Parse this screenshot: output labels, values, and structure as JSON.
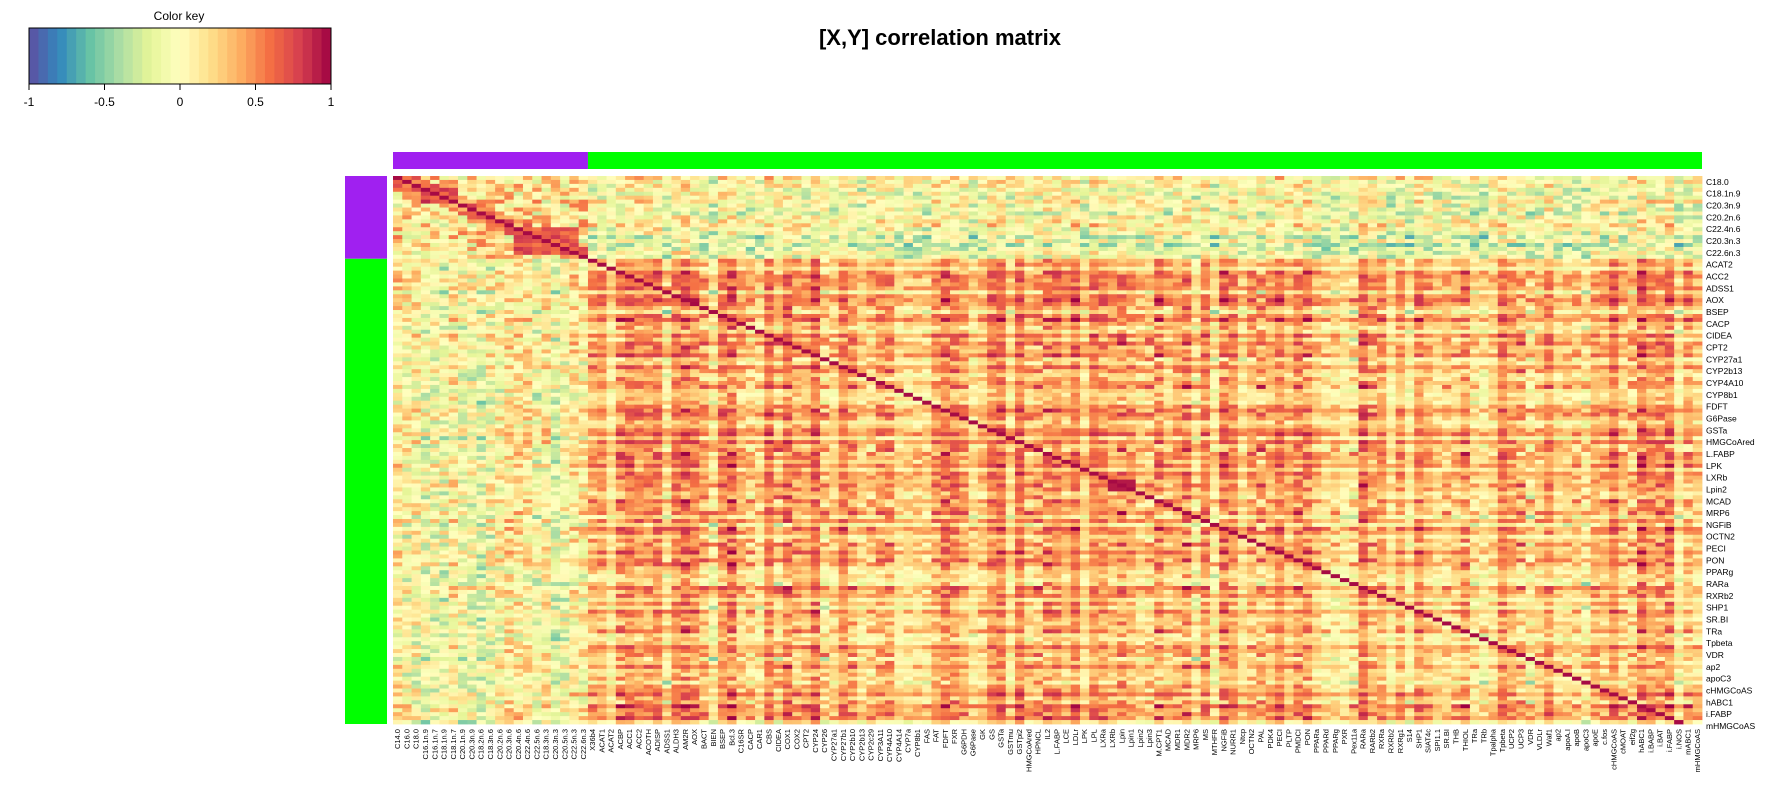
{
  "chart_data": {
    "type": "heatmap",
    "title": "[X,Y] correlation matrix",
    "color_key": {
      "title": "Color key",
      "ticks": [
        "-1",
        "-0.5",
        "0",
        "0.5",
        "1"
      ],
      "range": [
        -1,
        1
      ],
      "palette": [
        "#5e4fa2",
        "#3288bd",
        "#66c2a5",
        "#abdda4",
        "#e6f598",
        "#ffffbf",
        "#fee08b",
        "#fdae61",
        "#f46d43",
        "#d53e4f",
        "#9e0142"
      ]
    },
    "group_colors": {
      "X": "#a020f0",
      "Y": "#00ff00"
    },
    "row_labels": [
      "C18.0",
      "C18.1n.9",
      "C20.3n.9",
      "C20.2n.6",
      "C22.4n.6",
      "C20.3n.3",
      "C22.6n.3",
      "ACAT2",
      "ACC2",
      "ADSS1",
      "AOX",
      "BSEP",
      "CACP",
      "CIDEA",
      "CPT2",
      "CYP27a1",
      "CYP2b13",
      "CYP4A10",
      "CYP8b1",
      "FDFT",
      "G6Pase",
      "GSTa",
      "HMGCoAred",
      "L.FABP",
      "LPK",
      "LXRb",
      "Lpin2",
      "MCAD",
      "MRP6",
      "NGFiB",
      "OCTN2",
      "PECI",
      "PON",
      "PPARg",
      "RARa",
      "RXRb2",
      "SHP1",
      "SR.BI",
      "TRa",
      "Tpbeta",
      "VDR",
      "ap2",
      "apoC3",
      "cHMGCoAS",
      "hABC1",
      "i.FABP",
      "mHMGCoAS"
    ],
    "col_labels": [
      "C14.0",
      "C16.0",
      "C18.0",
      "C16.1n.9",
      "C16.1n.7",
      "C18.1n.9",
      "C18.1n.7",
      "C20.1n.9",
      "C20.3n.9",
      "C18.2n.6",
      "C18.3n.6",
      "C20.2n.6",
      "C20.3n.6",
      "C20.4n.6",
      "C22.4n.6",
      "C22.5n.6",
      "C18.3n.3",
      "C20.3n.3",
      "C20.5n.3",
      "C22.5n.3",
      "C22.6n.3",
      "X36b4",
      "ACAT1",
      "ACAT2",
      "ACBP",
      "ACC1",
      "ACC2",
      "ACOTH",
      "ADISP",
      "ADSS1",
      "ALDH3",
      "AM2R",
      "AOX",
      "BACT",
      "BIEN",
      "BSEP",
      "Bcl.3",
      "C16SR",
      "CACP",
      "CAR1",
      "CBS",
      "CIDEA",
      "COX1",
      "COX2",
      "CPT2",
      "CYP24",
      "CYP26",
      "CYP27a1",
      "CYP27b1",
      "CYP2b10",
      "CYP2b13",
      "CYP2c29",
      "CYP3A11",
      "CYP4A10",
      "CYP4A14",
      "CYP7a",
      "CYP8b1",
      "FAS",
      "FAT",
      "FDFT",
      "FXR",
      "G6PDH",
      "G6Pase",
      "GK",
      "GS",
      "GSTa",
      "GSTmu",
      "GSTpi2",
      "HMGCoAred",
      "HPNCL",
      "IL2",
      "L.FABP",
      "LCE",
      "LDLr",
      "LPK",
      "LPL",
      "LXRa",
      "LXRb",
      "Lpin",
      "Lpin1",
      "Lpin2",
      "Lpin3",
      "M.CPT1",
      "MCAD",
      "MDR1",
      "MDR2",
      "MRP6",
      "MS",
      "MTHFR",
      "NGFiB",
      "NURR1",
      "Ntcp",
      "OCTN2",
      "PAL",
      "PDK4",
      "PECI",
      "PLTP",
      "PMDCI",
      "PON",
      "PPARa",
      "PPARd",
      "PPARg",
      "PXR",
      "Pex11a",
      "RARa",
      "RARb2",
      "RXRa",
      "RXRb2",
      "RXRg1",
      "S14",
      "SHP1",
      "SIAT4c",
      "SPI1.1",
      "SR.BI",
      "THB",
      "THIOL",
      "TRa",
      "TRb",
      "Tpalpha",
      "Tpbeta",
      "UCP2",
      "UCP3",
      "VDR",
      "VLDLr",
      "Waf1",
      "ap2",
      "apoA.I",
      "apoB",
      "apoC3",
      "apoE",
      "c.fos",
      "cHMGCoAS",
      "cMOAT",
      "eif2g",
      "hABC1",
      "i.BABP",
      "i.BAT",
      "i.FABP",
      "i.NOS",
      "mABC1",
      "mHMGCoAS"
    ]
  }
}
